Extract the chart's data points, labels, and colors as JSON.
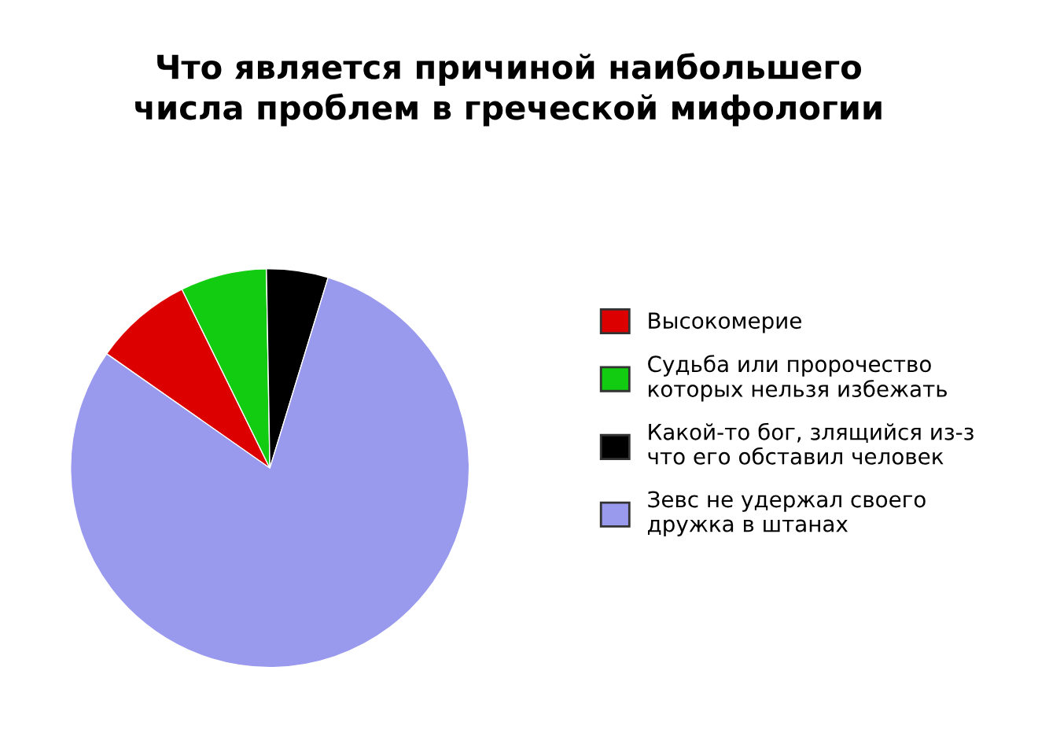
{
  "chart_data": {
    "type": "pie",
    "title": "Что является причиной наибольшего\nчисла проблем в греческой мифологии",
    "categories": [
      "Высокомерие",
      "Судьба или пророчество\nкоторых нельзя избежать",
      "Какой-то бог, злящийся из-з\nчто его обставил человек",
      "Зевс не удержал своего\nдружка в штанах"
    ],
    "values": [
      8,
      7,
      5,
      80
    ],
    "colors": [
      "#dd0000",
      "#11cc11",
      "#000000",
      "#9999ee"
    ],
    "legend": "right"
  }
}
